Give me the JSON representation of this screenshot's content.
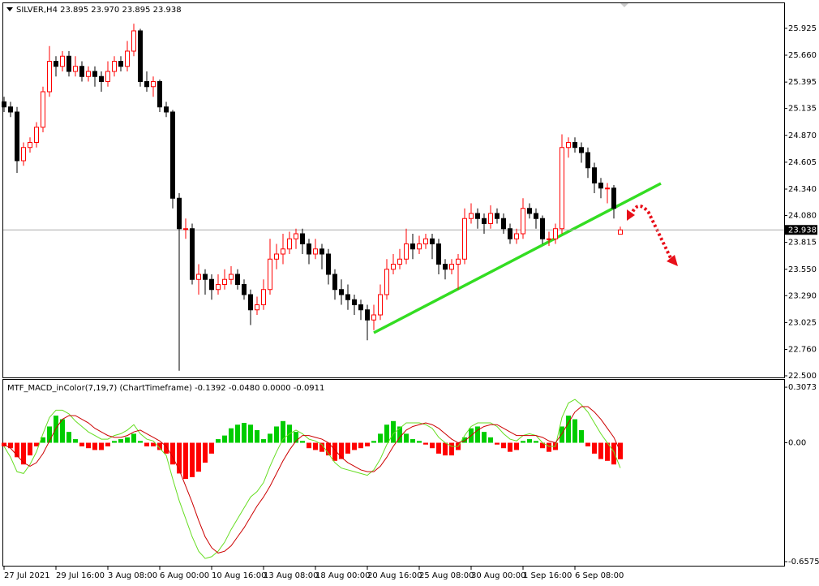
{
  "chart_data": [
    {
      "type": "candlestick",
      "title": "SILVER,H4  23.895 23.970 23.895 23.938",
      "categories": [
        "27 Jul 2021",
        null,
        null,
        null,
        null,
        null,
        null,
        null,
        "29 Jul 16:00",
        null,
        null,
        null,
        null,
        null,
        null,
        null,
        "3 Aug 08:00",
        null,
        null,
        null,
        null,
        null,
        null,
        null,
        "6 Aug 00:00",
        null,
        null,
        null,
        null,
        null,
        null,
        null,
        "10 Aug 16:00",
        null,
        null,
        null,
        null,
        null,
        null,
        null,
        "13 Aug 08:00",
        null,
        null,
        null,
        null,
        null,
        null,
        null,
        "18 Aug 00:00",
        null,
        null,
        null,
        null,
        null,
        null,
        null,
        "20 Aug 16:00",
        null,
        null,
        null,
        null,
        null,
        null,
        null,
        "25 Aug 08:00",
        null,
        null,
        null,
        null,
        null,
        null,
        null,
        "30 Aug 00:00",
        null,
        null,
        null,
        null,
        null,
        null,
        null,
        "1 Sep 16:00",
        null,
        null,
        null,
        null,
        null,
        null,
        null,
        "6 Sep 08:00",
        null,
        null,
        null,
        null,
        null,
        null,
        null
      ],
      "open": [
        25.2,
        25.15,
        25.1,
        24.62,
        24.75,
        24.8,
        24.95,
        25.3,
        25.6,
        25.55,
        25.65,
        25.5,
        25.55,
        25.45,
        25.5,
        25.45,
        25.4,
        25.5,
        25.6,
        25.55,
        25.7,
        25.9,
        25.4,
        25.35,
        25.4,
        25.15,
        25.1,
        24.25,
        23.95,
        23.95,
        23.45,
        23.5,
        23.45,
        23.35,
        23.4,
        23.45,
        23.5,
        23.4,
        23.3,
        23.15,
        23.2,
        23.35,
        23.65,
        23.7,
        23.75,
        23.85,
        23.9,
        23.8,
        23.7,
        23.75,
        23.7,
        23.5,
        23.35,
        23.3,
        23.25,
        23.2,
        23.15,
        23.05,
        23.1,
        23.3,
        23.55,
        23.6,
        23.65,
        23.8,
        23.75,
        23.8,
        23.85,
        23.8,
        23.6,
        23.55,
        23.6,
        23.65,
        24.05,
        24.1,
        24.05,
        24.0,
        24.1,
        24.05,
        23.95,
        23.85,
        23.9,
        24.15,
        24.1,
        24.05,
        23.85,
        23.85,
        23.95,
        24.75,
        24.8,
        24.75,
        24.7,
        24.55,
        24.4,
        24.35,
        24.35,
        23.895
      ],
      "high": [
        25.25,
        25.2,
        25.15,
        24.8,
        24.85,
        25.0,
        25.35,
        25.75,
        25.65,
        25.7,
        25.7,
        25.65,
        25.6,
        25.55,
        25.55,
        25.5,
        25.6,
        25.65,
        25.65,
        25.8,
        25.97,
        25.92,
        25.5,
        25.45,
        25.42,
        25.2,
        25.12,
        24.3,
        24.05,
        24.0,
        23.6,
        23.55,
        23.5,
        23.5,
        23.55,
        23.58,
        23.55,
        23.45,
        23.35,
        23.28,
        23.45,
        23.85,
        23.8,
        23.9,
        23.92,
        23.95,
        23.95,
        23.85,
        23.85,
        23.8,
        23.75,
        23.55,
        23.45,
        23.4,
        23.3,
        23.25,
        23.2,
        23.2,
        23.4,
        23.65,
        23.7,
        23.75,
        23.95,
        23.9,
        23.88,
        23.9,
        23.9,
        23.85,
        23.65,
        23.65,
        23.7,
        24.15,
        24.2,
        24.15,
        24.1,
        24.18,
        24.15,
        24.1,
        24.0,
        23.95,
        24.25,
        24.2,
        24.15,
        24.08,
        23.92,
        24.0,
        24.88,
        24.85,
        24.85,
        24.8,
        24.75,
        24.6,
        24.45,
        24.4,
        24.38,
        23.97
      ],
      "low": [
        25.1,
        25.05,
        24.5,
        24.57,
        24.7,
        24.75,
        24.9,
        25.25,
        25.45,
        25.5,
        25.45,
        25.45,
        25.4,
        25.4,
        25.35,
        25.3,
        25.35,
        25.45,
        25.5,
        25.5,
        25.65,
        25.35,
        25.3,
        25.25,
        25.1,
        25.05,
        24.15,
        22.55,
        23.85,
        23.4,
        23.3,
        23.3,
        23.25,
        23.3,
        23.35,
        23.4,
        23.35,
        23.25,
        23.0,
        23.1,
        23.15,
        23.3,
        23.55,
        23.6,
        23.7,
        23.75,
        23.7,
        23.6,
        23.65,
        23.55,
        23.4,
        23.25,
        23.2,
        23.15,
        23.1,
        23.05,
        22.85,
        22.95,
        23.05,
        23.25,
        23.5,
        23.55,
        23.6,
        23.65,
        23.7,
        23.75,
        23.65,
        23.5,
        23.45,
        23.5,
        23.35,
        23.6,
        24.0,
        23.95,
        23.9,
        23.95,
        24.0,
        23.9,
        23.8,
        23.8,
        23.85,
        24.05,
        23.95,
        23.8,
        23.78,
        23.8,
        23.9,
        24.65,
        24.7,
        24.6,
        24.45,
        24.3,
        24.25,
        24.2,
        24.05,
        23.895
      ],
      "close": [
        25.15,
        25.1,
        24.62,
        24.75,
        24.8,
        24.95,
        25.3,
        25.6,
        25.55,
        25.65,
        25.5,
        25.55,
        25.45,
        25.5,
        25.45,
        25.4,
        25.5,
        25.6,
        25.55,
        25.7,
        25.9,
        25.4,
        25.35,
        25.4,
        25.15,
        25.1,
        24.25,
        23.95,
        23.95,
        23.45,
        23.5,
        23.45,
        23.35,
        23.4,
        23.45,
        23.5,
        23.4,
        23.3,
        23.15,
        23.2,
        23.35,
        23.65,
        23.7,
        23.75,
        23.85,
        23.9,
        23.8,
        23.7,
        23.75,
        23.7,
        23.5,
        23.35,
        23.3,
        23.25,
        23.2,
        23.15,
        23.05,
        23.1,
        23.3,
        23.55,
        23.6,
        23.65,
        23.8,
        23.75,
        23.8,
        23.85,
        23.8,
        23.6,
        23.55,
        23.6,
        23.65,
        24.05,
        24.1,
        24.05,
        24.0,
        24.1,
        24.05,
        23.95,
        23.85,
        23.9,
        24.15,
        24.1,
        24.05,
        23.85,
        23.85,
        23.95,
        24.75,
        24.8,
        24.75,
        24.7,
        24.55,
        24.4,
        24.35,
        24.35,
        24.15,
        23.938
      ],
      "up_color": "#ff0000",
      "down_color": "#000000",
      "last_price": 23.938,
      "ylim": [
        22.484,
        26.172
      ],
      "yticks": [
        25.925,
        {
          "value": 25.66,
          "label": "25.660"
        },
        25.395,
        25.135,
        {
          "value": 24.87,
          "label": "24.870"
        },
        24.605,
        {
          "value": 24.34,
          "label": "24.340"
        },
        {
          "value": 24.08,
          "label": "24.080"
        },
        23.815,
        {
          "value": 23.55,
          "label": "23.550"
        },
        {
          "value": 23.29,
          "label": "23.290"
        },
        23.025,
        {
          "value": 22.76,
          "label": "22.760"
        },
        {
          "value": 22.5,
          "label": "22.500"
        }
      ]
    },
    {
      "type": "macd",
      "title": "MTF_MACD_inColor(7,19,7) (ChartTimeframe) -0.1392 -0.0480 0.0000 -0.0911",
      "histogram": [
        -0.02,
        -0.03,
        -0.08,
        -0.12,
        -0.07,
        -0.02,
        0.03,
        0.09,
        0.15,
        0.13,
        0.06,
        0.02,
        -0.02,
        -0.03,
        -0.04,
        -0.04,
        -0.02,
        0.01,
        0.02,
        0.03,
        0.05,
        0.01,
        -0.02,
        -0.02,
        -0.04,
        -0.06,
        -0.12,
        -0.17,
        -0.2,
        -0.19,
        -0.16,
        -0.11,
        -0.06,
        0.02,
        0.04,
        0.08,
        0.1,
        0.11,
        0.1,
        0.07,
        0.02,
        0.05,
        0.09,
        0.12,
        0.1,
        0.06,
        0.01,
        -0.03,
        -0.04,
        -0.05,
        -0.07,
        -0.1,
        -0.09,
        -0.06,
        -0.04,
        -0.03,
        -0.02,
        0.01,
        0.05,
        0.1,
        0.12,
        0.09,
        0.05,
        0.02,
        0.01,
        -0.01,
        -0.03,
        -0.06,
        -0.07,
        -0.07,
        -0.04,
        0.03,
        0.08,
        0.09,
        0.06,
        0.03,
        -0.01,
        -0.03,
        -0.05,
        -0.04,
        0.01,
        0.02,
        0.01,
        -0.03,
        -0.05,
        -0.04,
        0.09,
        0.15,
        0.13,
        0.07,
        -0.02,
        -0.06,
        -0.09,
        -0.1,
        -0.12,
        -0.0911
      ],
      "main": [
        -0.02,
        -0.08,
        -0.16,
        -0.17,
        -0.12,
        -0.05,
        0.05,
        0.14,
        0.18,
        0.18,
        0.16,
        0.12,
        0.09,
        0.06,
        0.04,
        0.02,
        0.02,
        0.04,
        0.05,
        0.07,
        0.1,
        0.05,
        0.02,
        0.01,
        -0.03,
        -0.07,
        -0.2,
        -0.32,
        -0.42,
        -0.52,
        -0.6,
        -0.64,
        -0.63,
        -0.6,
        -0.55,
        -0.48,
        -0.42,
        -0.36,
        -0.3,
        -0.27,
        -0.22,
        -0.13,
        -0.05,
        0.02,
        0.05,
        0.07,
        0.05,
        0.02,
        0.01,
        -0.01,
        -0.06,
        -0.11,
        -0.14,
        -0.15,
        -0.16,
        -0.17,
        -0.18,
        -0.15,
        -0.09,
        -0.01,
        0.05,
        0.08,
        0.11,
        0.11,
        0.11,
        0.1,
        0.08,
        0.03,
        0.0,
        -0.02,
        -0.02,
        0.04,
        0.09,
        0.11,
        0.11,
        0.11,
        0.09,
        0.05,
        0.02,
        0.01,
        0.04,
        0.05,
        0.04,
        0.0,
        -0.02,
        -0.02,
        0.14,
        0.22,
        0.24,
        0.21,
        0.17,
        0.11,
        0.05,
        0.0,
        -0.05,
        -0.1392
      ],
      "signal": [
        -0.01,
        -0.03,
        -0.07,
        -0.11,
        -0.13,
        -0.11,
        -0.06,
        0.01,
        0.08,
        0.13,
        0.15,
        0.15,
        0.13,
        0.11,
        0.08,
        0.06,
        0.04,
        0.03,
        0.03,
        0.04,
        0.06,
        0.07,
        0.05,
        0.03,
        0.01,
        -0.02,
        -0.08,
        -0.15,
        -0.24,
        -0.33,
        -0.43,
        -0.52,
        -0.58,
        -0.61,
        -0.6,
        -0.57,
        -0.52,
        -0.47,
        -0.41,
        -0.35,
        -0.3,
        -0.24,
        -0.17,
        -0.1,
        -0.04,
        0.01,
        0.04,
        0.04,
        0.03,
        0.02,
        0.0,
        -0.04,
        -0.08,
        -0.11,
        -0.13,
        -0.15,
        -0.16,
        -0.16,
        -0.13,
        -0.08,
        -0.02,
        0.03,
        0.07,
        0.09,
        0.1,
        0.11,
        0.1,
        0.08,
        0.05,
        0.02,
        0.0,
        0.01,
        0.04,
        0.07,
        0.09,
        0.1,
        0.1,
        0.08,
        0.06,
        0.04,
        0.04,
        0.04,
        0.04,
        0.03,
        0.01,
        0.0,
        0.05,
        0.11,
        0.17,
        0.2,
        0.2,
        0.17,
        0.13,
        0.08,
        0.03,
        -0.048
      ],
      "up_color": "#00cc00",
      "down_color": "#ff0000",
      "main_color": "#66dd22",
      "signal_color": "#cc0000",
      "ylim": [
        -0.68,
        0.348
      ],
      "yticks": [
        0.3073,
        {
          "value": 0,
          "label": "0.00"
        },
        -0.6575
      ]
    }
  ]
}
